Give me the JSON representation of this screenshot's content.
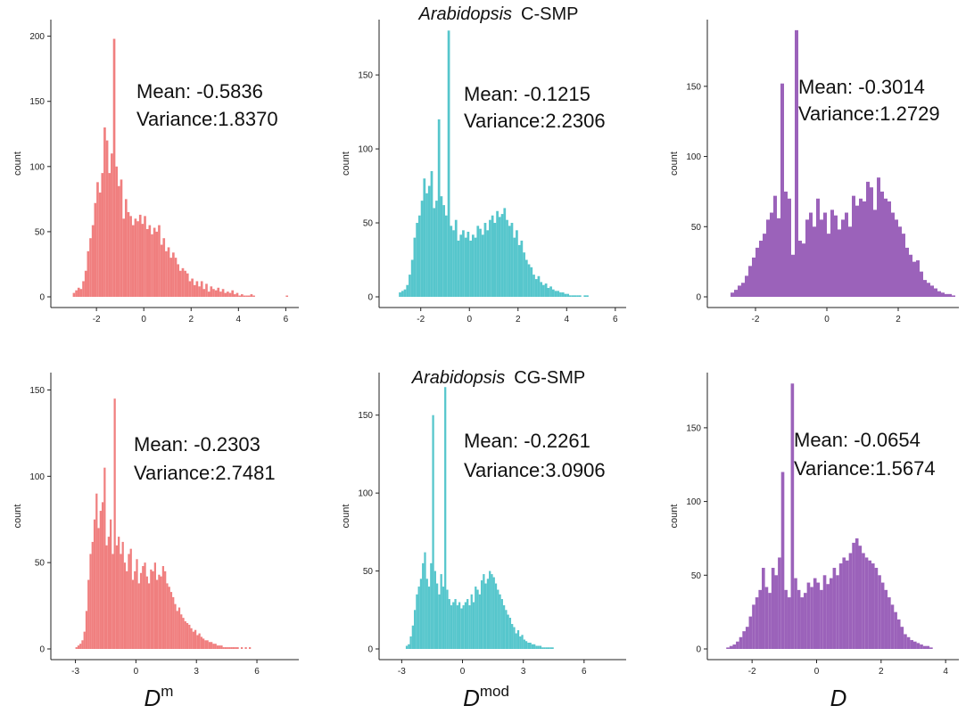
{
  "figure": {
    "row_titles": [
      {
        "species": "Arabidopsis",
        "context": "C-SMP"
      },
      {
        "species": "Arabidopsis",
        "context": "CG-SMP"
      }
    ],
    "x_labels": [
      {
        "base": "D",
        "sup": "m"
      },
      {
        "base": "D",
        "sup": "mod"
      },
      {
        "base": "D",
        "sup": ""
      }
    ]
  },
  "chart_data": [
    {
      "type": "bar",
      "row": 0,
      "col": 0,
      "color": "#f07f7f",
      "ylabel": "count",
      "xlim": [
        -3.4,
        6.4
      ],
      "ylim": [
        0,
        210
      ],
      "xticks": [
        -2,
        0,
        2,
        4,
        6
      ],
      "yticks": [
        0,
        50,
        100,
        150,
        200
      ],
      "stats": {
        "mean_label": "Mean: -0.5836",
        "variance_label": "Variance:1.8370"
      },
      "bins": {
        "x_start": -3.0,
        "bin_width": 0.1
      },
      "values": [
        3,
        5,
        7,
        6,
        12,
        20,
        35,
        45,
        55,
        72,
        88,
        80,
        95,
        130,
        120,
        95,
        110,
        198,
        100,
        85,
        90,
        60,
        75,
        65,
        62,
        55,
        60,
        58,
        63,
        56,
        62,
        52,
        55,
        48,
        53,
        50,
        55,
        40,
        45,
        35,
        38,
        30,
        34,
        30,
        25,
        20,
        22,
        20,
        18,
        12,
        14,
        9,
        12,
        8,
        12,
        6,
        10,
        4,
        8,
        6,
        5,
        7,
        4,
        6,
        3,
        4,
        3,
        5,
        2,
        3,
        1,
        2,
        1,
        1,
        1,
        2,
        1,
        0,
        0,
        0,
        0,
        0,
        0,
        0,
        0,
        0,
        0,
        0,
        0,
        0,
        1
      ]
    },
    {
      "type": "bar",
      "row": 0,
      "col": 1,
      "color": "#56c6cc",
      "ylabel": "count",
      "xlim": [
        -3.2,
        6.3
      ],
      "ylim": [
        0,
        185
      ],
      "xticks": [
        -2,
        0,
        2,
        4,
        6
      ],
      "yticks": [
        0,
        50,
        100,
        150
      ],
      "stats": {
        "mean_label": "Mean: -0.1215",
        "variance_label": "Variance:2.2306"
      },
      "bins": {
        "x_start": -2.9,
        "bin_width": 0.1
      },
      "values": [
        3,
        4,
        5,
        8,
        15,
        25,
        40,
        50,
        55,
        65,
        80,
        70,
        75,
        85,
        60,
        65,
        120,
        68,
        62,
        55,
        180,
        48,
        45,
        52,
        38,
        42,
        45,
        40,
        44,
        38,
        42,
        40,
        48,
        46,
        42,
        50,
        45,
        52,
        55,
        50,
        58,
        54,
        56,
        60,
        52,
        48,
        50,
        40,
        45,
        35,
        38,
        30,
        25,
        22,
        20,
        15,
        12,
        14,
        10,
        8,
        9,
        6,
        7,
        5,
        4,
        4,
        3,
        3,
        2,
        2,
        1,
        1,
        1,
        1,
        1,
        0,
        1,
        1
      ]
    },
    {
      "type": "bar",
      "row": 0,
      "col": 2,
      "color": "#9b62ba",
      "ylabel": "count",
      "xlim": [
        -3.0,
        3.6
      ],
      "ylim": [
        0,
        195
      ],
      "xticks": [
        -2,
        0,
        2
      ],
      "yticks": [
        0,
        50,
        100,
        150
      ],
      "stats": {
        "mean_label": "Mean: -0.3014",
        "variance_label": "Variance:1.2729"
      },
      "bins": {
        "x_start": -2.7,
        "bin_width": 0.1
      },
      "values": [
        3,
        5,
        8,
        10,
        15,
        22,
        28,
        35,
        40,
        45,
        55,
        60,
        72,
        56,
        152,
        75,
        70,
        30,
        190,
        40,
        38,
        55,
        60,
        50,
        70,
        55,
        60,
        45,
        62,
        58,
        48,
        55,
        60,
        50,
        72,
        65,
        70,
        68,
        82,
        78,
        62,
        85,
        75,
        70,
        68,
        60,
        55,
        50,
        45,
        35,
        30,
        25,
        26,
        18,
        12,
        10,
        8,
        6,
        4,
        3,
        2,
        2,
        1
      ]
    },
    {
      "type": "bar",
      "row": 1,
      "col": 0,
      "color": "#f07f7f",
      "ylabel": "count",
      "xlim": [
        -3.6,
        7.9
      ],
      "ylim": [
        0,
        158
      ],
      "xticks": [
        -3,
        0,
        3,
        6
      ],
      "yticks": [
        0,
        50,
        100,
        150
      ],
      "stats": {
        "mean_label": "Mean: -0.2303",
        "variance_label": "Variance:2.7481"
      },
      "bins": {
        "x_start": -3.0,
        "bin_width": 0.1
      },
      "values": [
        1,
        2,
        3,
        5,
        10,
        22,
        40,
        55,
        62,
        75,
        90,
        70,
        80,
        85,
        105,
        60,
        65,
        75,
        55,
        145,
        60,
        65,
        55,
        62,
        50,
        45,
        55,
        58,
        40,
        45,
        52,
        38,
        44,
        48,
        50,
        42,
        38,
        46,
        45,
        50,
        40,
        43,
        42,
        48,
        45,
        38,
        36,
        33,
        30,
        26,
        22,
        24,
        20,
        18,
        16,
        15,
        14,
        12,
        10,
        11,
        8,
        9,
        7,
        6,
        5,
        5,
        4,
        4,
        3,
        3,
        2,
        2,
        2,
        1,
        1,
        1,
        1,
        1,
        1,
        1,
        1,
        0,
        1,
        0,
        1,
        0,
        1
      ]
    },
    {
      "type": "bar",
      "row": 1,
      "col": 1,
      "color": "#56c6cc",
      "ylabel": "count",
      "xlim": [
        -3.5,
        7.9
      ],
      "ylim": [
        0,
        175
      ],
      "xticks": [
        -3,
        0,
        3,
        6
      ],
      "yticks": [
        0,
        50,
        100,
        150
      ],
      "stats": {
        "mean_label": "Mean: -0.2261",
        "variance_label": "Variance:3.0906"
      },
      "bins": {
        "x_start": -2.8,
        "bin_width": 0.1
      },
      "values": [
        2,
        3,
        8,
        15,
        25,
        35,
        40,
        45,
        55,
        62,
        45,
        40,
        55,
        150,
        50,
        42,
        35,
        48,
        40,
        168,
        38,
        32,
        28,
        30,
        32,
        28,
        30,
        26,
        28,
        30,
        32,
        28,
        35,
        30,
        40,
        38,
        35,
        44,
        48,
        42,
        45,
        50,
        48,
        46,
        42,
        38,
        35,
        32,
        28,
        25,
        22,
        20,
        16,
        14,
        10,
        12,
        8,
        9,
        6,
        5,
        4,
        4,
        3,
        3,
        2,
        2,
        2,
        1,
        1,
        1,
        1,
        1,
        1
      ]
    },
    {
      "type": "bar",
      "row": 1,
      "col": 2,
      "color": "#9b62ba",
      "ylabel": "count",
      "xlim": [
        -3.0,
        4.3
      ],
      "ylim": [
        0,
        185
      ],
      "xticks": [
        -2,
        0,
        2,
        4
      ],
      "yticks": [
        0,
        50,
        100,
        150
      ],
      "stats": {
        "mean_label": "Mean: -0.0654",
        "variance_label": "Variance:1.5674"
      },
      "bins": {
        "x_start": -2.8,
        "bin_width": 0.1
      },
      "values": [
        1,
        2,
        3,
        5,
        8,
        12,
        15,
        22,
        30,
        35,
        40,
        55,
        42,
        38,
        55,
        50,
        62,
        120,
        40,
        35,
        180,
        48,
        40,
        35,
        38,
        45,
        42,
        48,
        45,
        40,
        50,
        44,
        48,
        55,
        50,
        58,
        62,
        60,
        65,
        72,
        75,
        70,
        65,
        62,
        60,
        58,
        55,
        50,
        45,
        40,
        35,
        30,
        25,
        20,
        15,
        10,
        8,
        6,
        5,
        4,
        3,
        2,
        2,
        1
      ]
    }
  ]
}
